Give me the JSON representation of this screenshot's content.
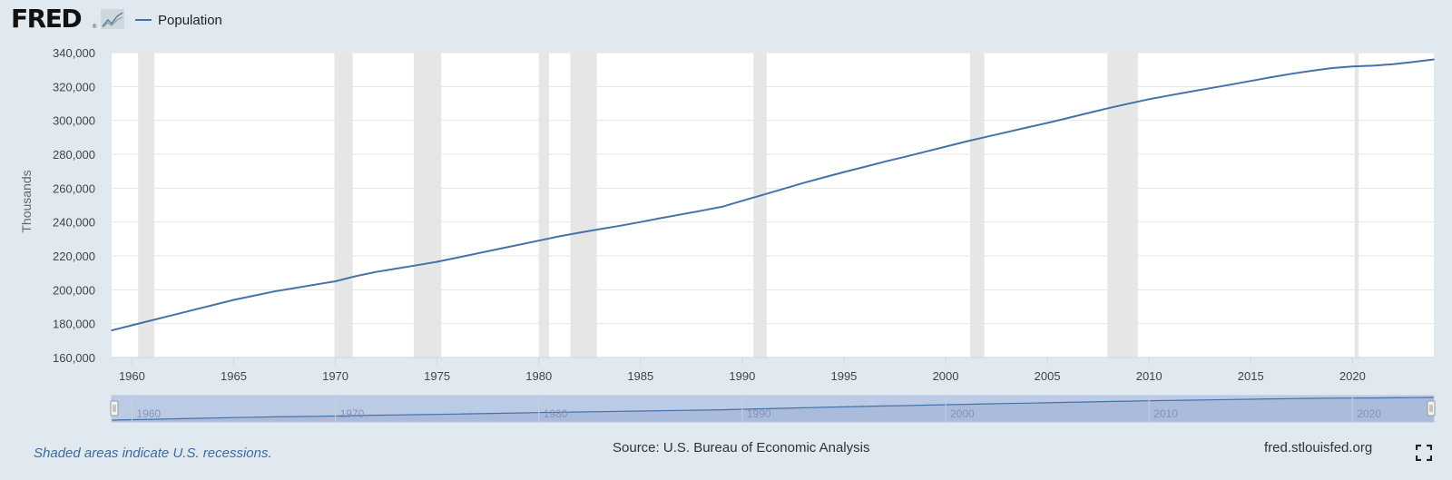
{
  "header": {
    "logo_text": "FRED",
    "logo_reg": "®",
    "legend_label": "Population"
  },
  "footer": {
    "recession_note": "Shaded areas indicate U.S. recessions.",
    "source": "Source: U.S. Bureau of Economic Analysis",
    "site": "fred.stlouisfed.org"
  },
  "colors": {
    "background": "#e1e9f0",
    "line": "#4572a7",
    "recession_shade": "#e6e6e6",
    "navigator_fill": "#a7b8da",
    "navigator_mask": "#bccbe5"
  },
  "chart_data": {
    "type": "line",
    "ylabel": "Thousands",
    "xlabel": "",
    "title": "",
    "ylim": [
      160000,
      340000
    ],
    "y_ticks": [
      160000,
      180000,
      200000,
      220000,
      240000,
      260000,
      280000,
      300000,
      320000,
      340000
    ],
    "y_tick_labels": [
      "160,000",
      "180,000",
      "200,000",
      "220,000",
      "240,000",
      "260,000",
      "280,000",
      "300,000",
      "320,000",
      "340,000"
    ],
    "xlim": [
      1959.0,
      2024.0
    ],
    "x_tick_labels": [
      "1960",
      "1965",
      "1970",
      "1975",
      "1980",
      "1985",
      "1990",
      "1995",
      "2000",
      "2005",
      "2010",
      "2015",
      "2020"
    ],
    "navigator_tick_labels": [
      "1960",
      "1970",
      "1980",
      "1990",
      "2000",
      "2010",
      "2020"
    ],
    "grid": "horizontal",
    "recessions": [
      [
        1960.3,
        1961.1
      ],
      [
        1969.95,
        1970.85
      ],
      [
        1973.85,
        1975.2
      ],
      [
        1980.0,
        1980.5
      ],
      [
        1981.55,
        1982.85
      ],
      [
        1990.55,
        1991.2
      ],
      [
        2001.2,
        2001.9
      ],
      [
        2007.95,
        2009.45
      ],
      [
        2020.1,
        2020.3
      ]
    ],
    "series": [
      {
        "name": "Population",
        "x": [
          1959.0,
          1960.0,
          1961.0,
          1962.0,
          1963.0,
          1964.0,
          1965.0,
          1966.0,
          1967.0,
          1968.0,
          1969.0,
          1970.0,
          1971.0,
          1972.0,
          1973.0,
          1974.0,
          1975.0,
          1976.0,
          1977.0,
          1978.0,
          1979.0,
          1980.0,
          1981.0,
          1982.0,
          1983.0,
          1984.0,
          1985.0,
          1986.0,
          1987.0,
          1988.0,
          1989.0,
          1990.0,
          1991.0,
          1992.0,
          1993.0,
          1994.0,
          1995.0,
          1996.0,
          1997.0,
          1998.0,
          1999.0,
          2000.0,
          2001.0,
          2002.0,
          2003.0,
          2004.0,
          2005.0,
          2006.0,
          2007.0,
          2008.0,
          2009.0,
          2010.0,
          2011.0,
          2012.0,
          2013.0,
          2014.0,
          2015.0,
          2016.0,
          2017.0,
          2018.0,
          2019.0,
          2020.0,
          2020.5,
          2021.0,
          2022.0,
          2023.0,
          2024.0
        ],
        "values": [
          176000,
          179000,
          182000,
          185000,
          188000,
          191000,
          194000,
          196500,
          199000,
          201000,
          203000,
          205000,
          208000,
          210500,
          212500,
          214500,
          216500,
          219000,
          221500,
          224000,
          226500,
          229000,
          231500,
          233700,
          235800,
          237800,
          240000,
          242300,
          244500,
          246700,
          249000,
          252500,
          256000,
          259500,
          263000,
          266300,
          269500,
          272500,
          275600,
          278500,
          281500,
          284500,
          287500,
          290300,
          293000,
          295800,
          298500,
          301400,
          304300,
          307200,
          309900,
          312500,
          314700,
          316900,
          319000,
          321100,
          323300,
          325500,
          327500,
          329300,
          330900,
          331800,
          332100,
          332300,
          333200,
          334500,
          336000
        ]
      }
    ]
  }
}
